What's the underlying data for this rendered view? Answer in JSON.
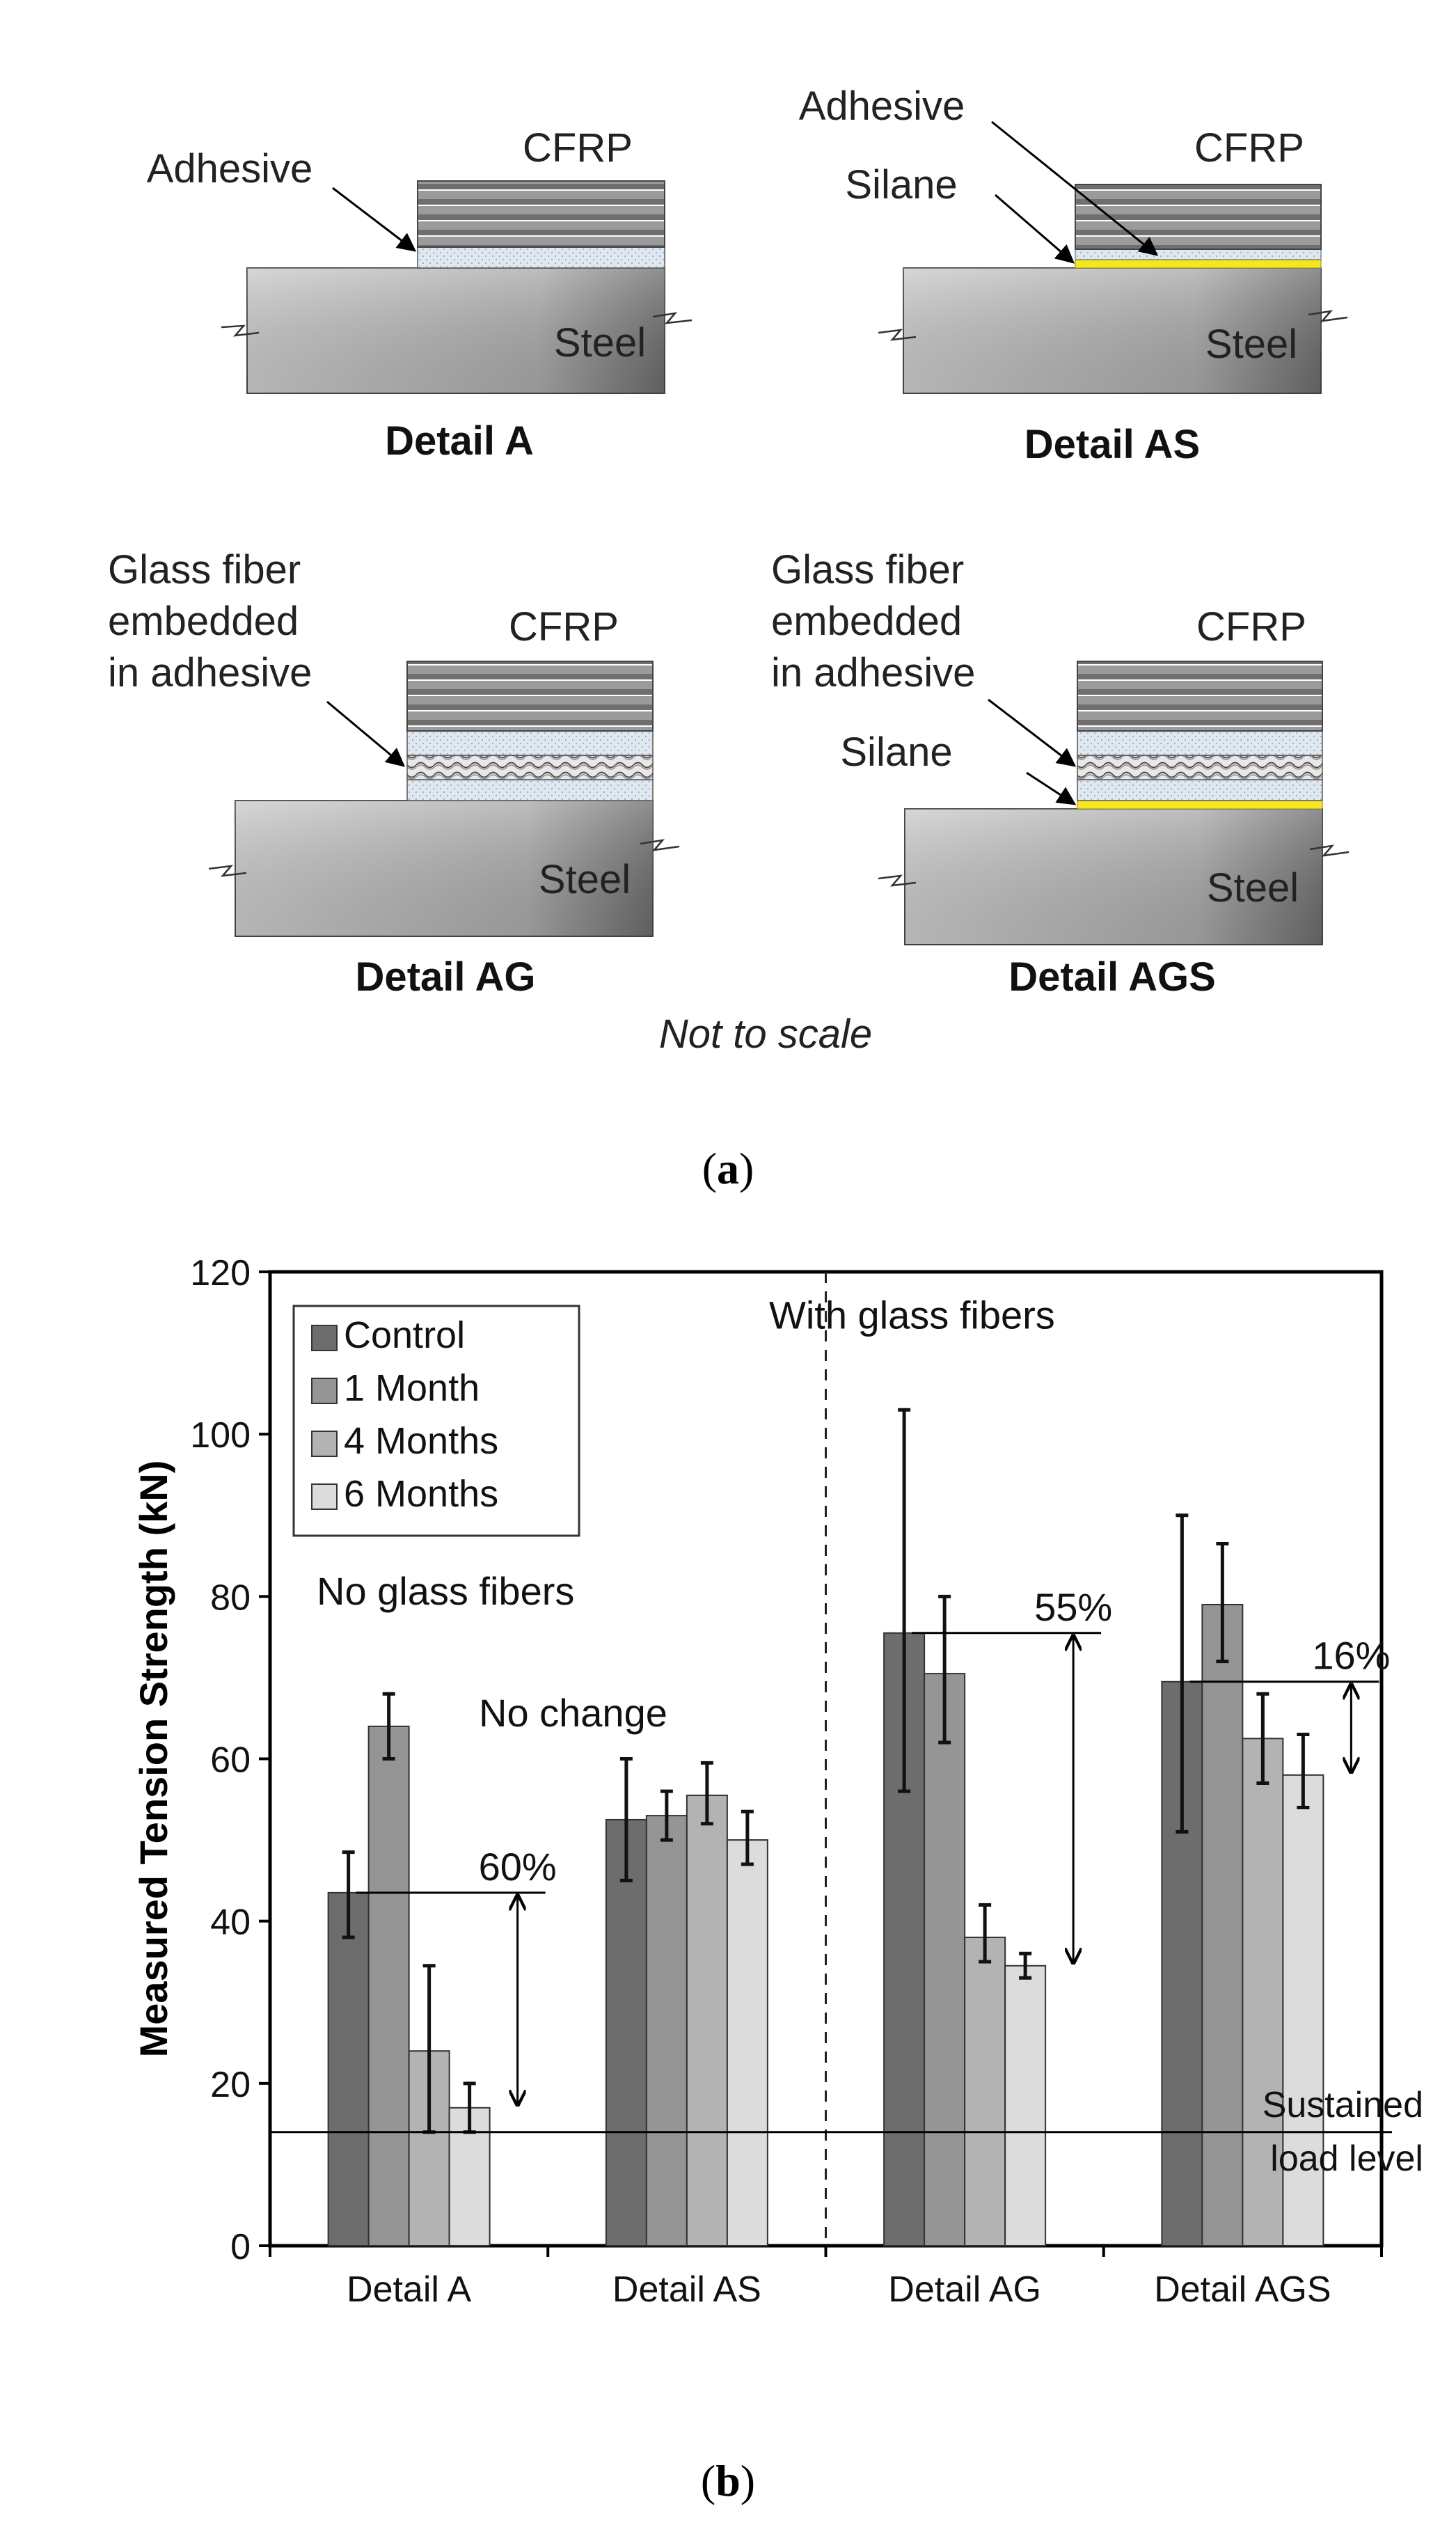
{
  "panel_a": {
    "details": [
      {
        "title": "Detail A",
        "labels": [
          "Adhesive"
        ],
        "cfrp": "CFRP",
        "steel": "Steel"
      },
      {
        "title": "Detail AS",
        "labels": [
          "Adhesive",
          "Silane"
        ],
        "cfrp": "CFRP",
        "steel": "Steel"
      },
      {
        "title": "Detail AG",
        "labels": [
          "Glass fiber",
          "embedded",
          "in adhesive"
        ],
        "cfrp": "CFRP",
        "steel": "Steel"
      },
      {
        "title": "Detail AGS",
        "labels": [
          "Glass fiber",
          "embedded",
          "in adhesive",
          "Silane"
        ],
        "cfrp": "CFRP",
        "steel": "Steel"
      }
    ],
    "note": "Not to scale",
    "caption": {
      "open": "(",
      "letter": "a",
      "close": ")"
    }
  },
  "panel_b": {
    "caption": {
      "open": "(",
      "letter": "b",
      "close": ")"
    }
  },
  "colors": {
    "control": "#6d6d6d",
    "month1": "#959595",
    "months4": "#b3b3b3",
    "months6": "#dcdcdc",
    "silane": "#f5e620",
    "adhesive": "#dfe7f0"
  },
  "chart_data": {
    "type": "bar",
    "ylabel": "Measured Tension Strength (kN)",
    "ylim": [
      0,
      120
    ],
    "yticks": [
      0,
      20,
      40,
      60,
      80,
      100,
      120
    ],
    "categories": [
      "Detail A",
      "Detail AS",
      "Detail AG",
      "Detail AGS"
    ],
    "series": [
      {
        "name": "Control",
        "values": [
          43.5,
          52.5,
          75.5,
          69.5
        ],
        "err_low": [
          38,
          45,
          56,
          51
        ],
        "err_high": [
          48.5,
          60,
          103,
          90
        ]
      },
      {
        "name": "1 Month",
        "values": [
          64,
          53,
          70.5,
          79
        ],
        "err_low": [
          60,
          50,
          62,
          72
        ],
        "err_high": [
          68,
          56,
          80,
          86.5
        ]
      },
      {
        "name": "4 Months",
        "values": [
          24,
          55.5,
          38,
          62.5
        ],
        "err_low": [
          14,
          52,
          35,
          57
        ],
        "err_high": [
          34.5,
          59.5,
          42,
          68
        ]
      },
      {
        "name": "6 Months",
        "values": [
          17,
          50,
          34.5,
          58
        ],
        "err_low": [
          14,
          47,
          33,
          54
        ],
        "err_high": [
          20,
          53.5,
          36,
          63
        ]
      }
    ],
    "sustained_load": {
      "value": 14,
      "label": [
        "Sustained",
        "load level"
      ]
    },
    "annotations": {
      "no_glass": "No glass fibers",
      "with_glass": "With glass fibers",
      "no_change": "No change",
      "drops": [
        {
          "text": "60%",
          "category": "Detail A",
          "from": 43.5,
          "to": 17
        },
        {
          "text": "55%",
          "category": "Detail AG",
          "from": 75.5,
          "to": 34.5
        },
        {
          "text": "16%",
          "category": "Detail AGS",
          "from": 69.5,
          "to": 58
        }
      ]
    },
    "legend_position": "top-left"
  }
}
